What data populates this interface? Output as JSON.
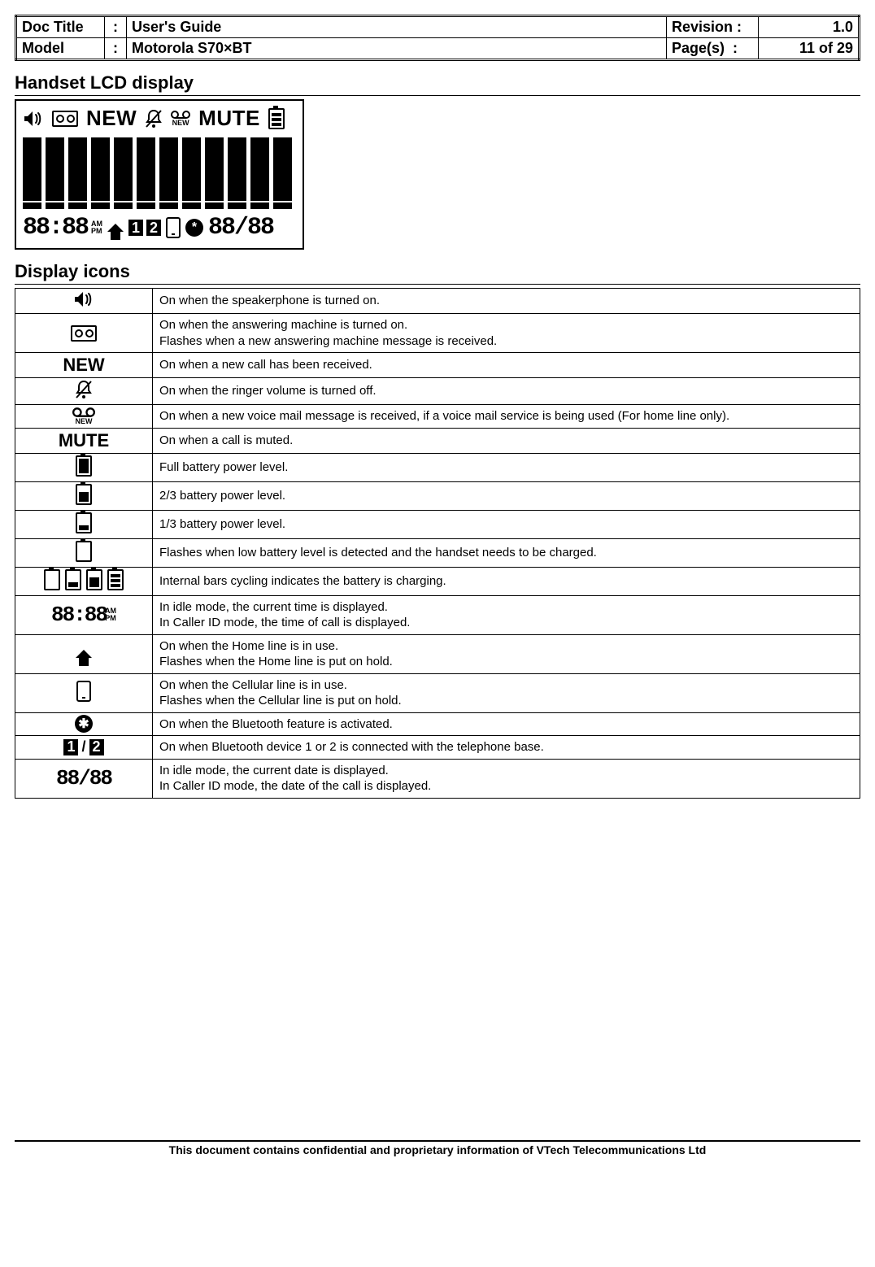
{
  "header": {
    "doc_title_label": "Doc Title",
    "doc_title_value": "User's Guide",
    "model_label": "Model",
    "model_value": "Motorola S70×BT",
    "revision_label": "Revision",
    "revision_value": "1.0",
    "pages_label": "Page(s)",
    "pages_value": "11 of 29",
    "colon": ":"
  },
  "sections": {
    "lcd_title": "Handset LCD display",
    "icons_title": "Display icons"
  },
  "lcd": {
    "new_text": "NEW",
    "vm_new_small": "NEW",
    "mute_text": "MUTE",
    "time_seg": "88:88",
    "am": "AM",
    "pm": "PM",
    "dev1": "1",
    "dev2": "2",
    "date_seg": "88/88"
  },
  "icons_table": {
    "rows": [
      {
        "key": "speaker",
        "desc": "On when the speakerphone is turned on."
      },
      {
        "key": "ans",
        "desc": "On when the answering machine is turned on.\nFlashes when a new answering machine message is received."
      },
      {
        "key": "new",
        "label": "NEW",
        "desc": "On when a new call has been received."
      },
      {
        "key": "ringer_off",
        "desc": "On when the ringer volume is turned off."
      },
      {
        "key": "vm_new",
        "label_small": "NEW",
        "desc": "On when a new voice mail message is received, if a voice mail service is being used (For home line only)."
      },
      {
        "key": "mute",
        "label": "MUTE",
        "desc": "On when a call is muted."
      },
      {
        "key": "batt_full",
        "desc": "Full battery power level."
      },
      {
        "key": "batt_23",
        "desc": "2/3 battery power level."
      },
      {
        "key": "batt_13",
        "desc": "1/3 battery power level."
      },
      {
        "key": "batt_low",
        "desc": "Flashes when low battery level is detected and the handset needs to be charged."
      },
      {
        "key": "batt_cycle",
        "desc": "Internal bars cycling indicates the battery is charging."
      },
      {
        "key": "time",
        "time": "88:88",
        "am": "AM",
        "pm": "PM",
        "desc": "In idle mode, the current time is displayed.\nIn Caller ID mode, the time of call is displayed."
      },
      {
        "key": "home",
        "desc": "On when the Home line is in use.\nFlashes when the Home line is put on hold."
      },
      {
        "key": "cell",
        "desc": "On when the Cellular line is in use.\nFlashes when the Cellular line is put on hold."
      },
      {
        "key": "bt",
        "glyph": "✱",
        "desc": "On when the Bluetooth feature is activated."
      },
      {
        "key": "dev12",
        "d1": "1",
        "d2": "2",
        "slash": "/",
        "desc": "On when Bluetooth device 1 or 2 is connected with the telephone base."
      },
      {
        "key": "date",
        "date": "88/88",
        "desc": "In idle mode, the current date is displayed.\nIn Caller ID mode, the date of the call is displayed."
      }
    ]
  },
  "footer": "This document contains confidential and proprietary information of VTech Telecommunications Ltd"
}
